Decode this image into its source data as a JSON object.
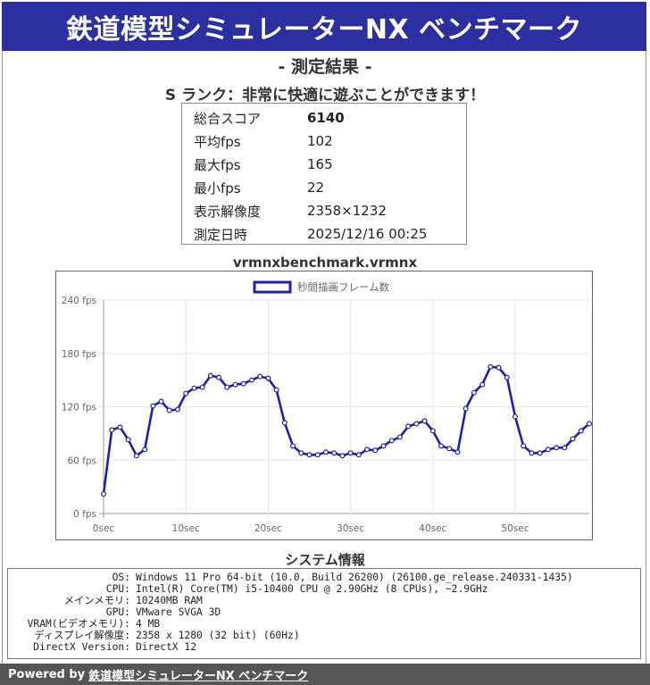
{
  "header": {
    "title": "鉄道模型シミュレーターNX ベンチマーク"
  },
  "result": {
    "subtitle": "- 測定結果 -",
    "rank_text": "S ランク：非常に快適に遊ぶことができます！",
    "rows": [
      {
        "label": "総合スコア",
        "value": "6140"
      },
      {
        "label": "平均fps",
        "value": "102"
      },
      {
        "label": "最大fps",
        "value": "165"
      },
      {
        "label": "最小fps",
        "value": "22"
      },
      {
        "label": "表示解像度",
        "value": "2358×1232"
      },
      {
        "label": "測定日時",
        "value": "2025/12/16 00:25"
      }
    ]
  },
  "chart_data": {
    "type": "line",
    "title": "vrmnxbenchmark.vrmnx",
    "legend": "top-center",
    "ylim": [
      0,
      240
    ],
    "xlim": [
      0,
      59
    ],
    "yticks": [
      "0 fps",
      "60 fps",
      "120 fps",
      "180 fps",
      "240 fps"
    ],
    "ytick_values": [
      0,
      60,
      120,
      180,
      240
    ],
    "xticks": [
      "0sec",
      "10sec",
      "20sec",
      "30sec",
      "40sec",
      "50sec"
    ],
    "xtick_values": [
      0,
      10,
      20,
      30,
      40,
      50
    ],
    "grid": true,
    "colors": {
      "line": "#1f1fa8",
      "grid": "#e6e6e6",
      "axis": "#999999"
    },
    "series": [
      {
        "name": "秒間描画フレーム数",
        "x": [
          0,
          1,
          2,
          3,
          4,
          5,
          6,
          7,
          8,
          9,
          10,
          11,
          12,
          13,
          14,
          15,
          16,
          17,
          18,
          19,
          20,
          21,
          22,
          23,
          24,
          25,
          26,
          27,
          28,
          29,
          30,
          31,
          32,
          33,
          34,
          35,
          36,
          37,
          38,
          39,
          40,
          41,
          42,
          43,
          44,
          45,
          46,
          47,
          48,
          49,
          50,
          51,
          52,
          53,
          54,
          55,
          56,
          57,
          58,
          59
        ],
        "values": [
          22,
          94,
          97,
          83,
          65,
          72,
          121,
          126,
          116,
          117,
          135,
          141,
          142,
          155,
          153,
          142,
          145,
          146,
          150,
          154,
          152,
          139,
          102,
          76,
          68,
          66,
          66,
          69,
          68,
          65,
          68,
          66,
          72,
          71,
          76,
          82,
          86,
          98,
          101,
          104,
          93,
          76,
          73,
          69,
          118,
          136,
          145,
          165,
          164,
          153,
          109,
          76,
          68,
          68,
          72,
          74,
          74,
          84,
          93,
          101
        ]
      }
    ]
  },
  "system": {
    "title": "システム情報",
    "rows": [
      {
        "label": "OS:",
        "value": "Windows 11 Pro 64-bit (10.0, Build 26200) (26100.ge_release.240331-1435)"
      },
      {
        "label": "CPU:",
        "value": "Intel(R) Core(TM) i5-10400 CPU @ 2.90GHz (8 CPUs), ~2.9GHz"
      },
      {
        "label": "メインメモリ:",
        "value": "10240MB RAM"
      },
      {
        "label": "GPU:",
        "value": "VMware SVGA 3D"
      },
      {
        "label": "VRAM(ビデオメモリ):",
        "value": "4 MB"
      },
      {
        "label": "ディスプレイ解像度:",
        "value": "2358 x 1280 (32 bit) (60Hz)"
      },
      {
        "label": "DirectX Version:",
        "value": "DirectX 12"
      }
    ]
  },
  "footer": {
    "prefix": "Powered by",
    "link": "鉄道模型シミュレーターNX ベンチマーク"
  }
}
